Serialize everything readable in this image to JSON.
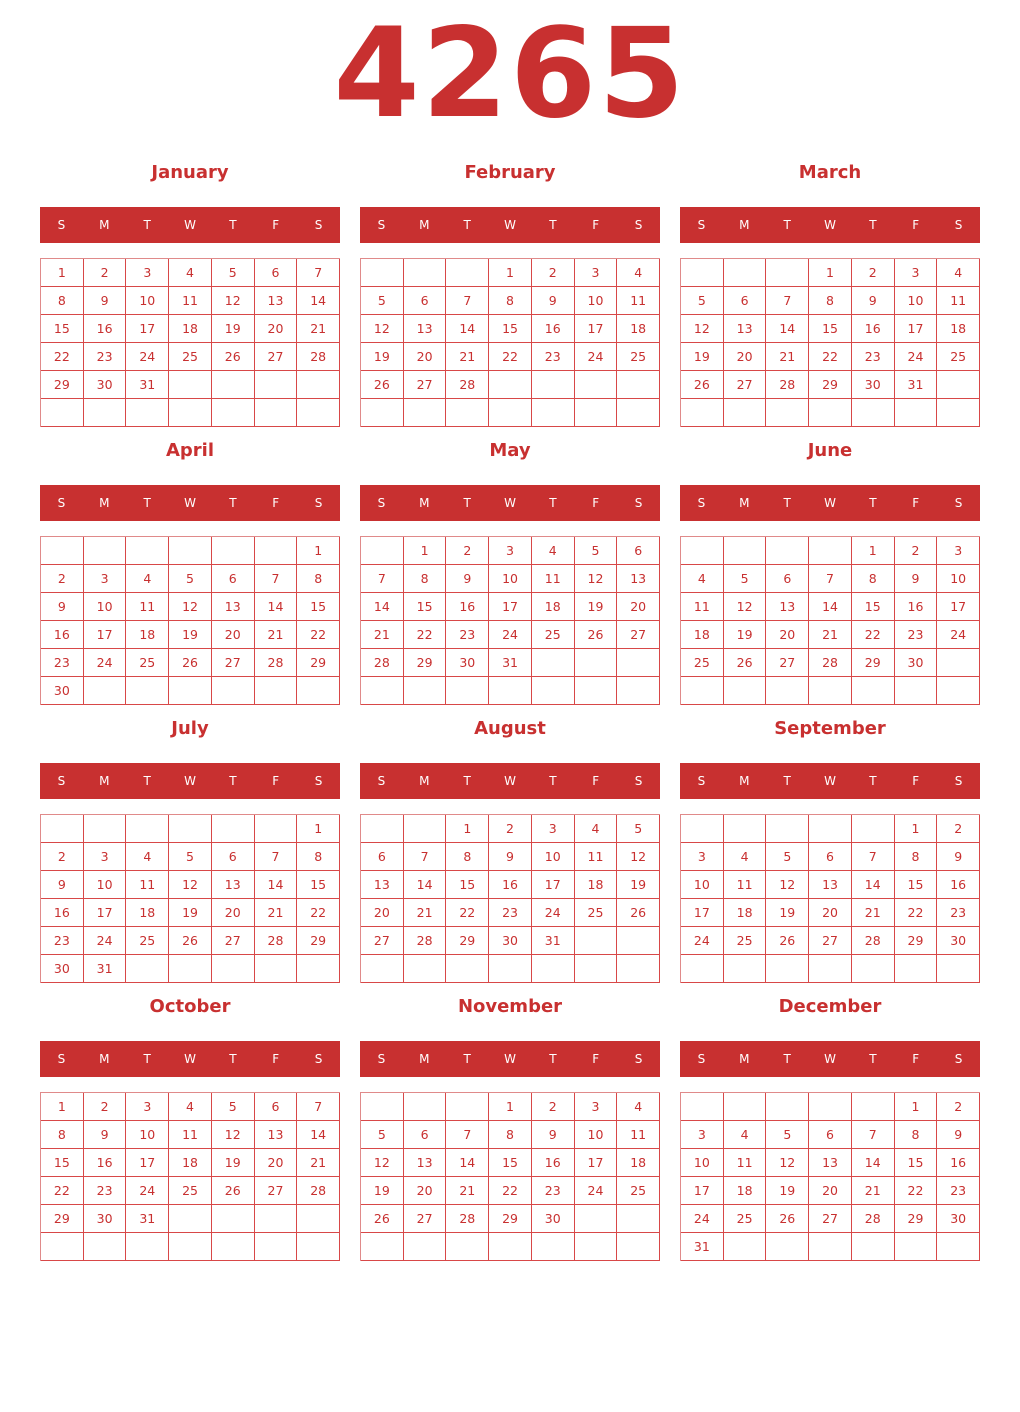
{
  "year": "4265",
  "colors": {
    "accent": "#c83030",
    "header_text": "#ffffff"
  },
  "weekday_labels": [
    "S",
    "M",
    "T",
    "W",
    "T",
    "F",
    "S"
  ],
  "months": [
    {
      "name": "January",
      "weeks": [
        [
          1,
          2,
          3,
          4,
          5,
          6,
          7
        ],
        [
          8,
          9,
          10,
          11,
          12,
          13,
          14
        ],
        [
          15,
          16,
          17,
          18,
          19,
          20,
          21
        ],
        [
          22,
          23,
          24,
          25,
          26,
          27,
          28
        ],
        [
          29,
          30,
          31,
          "",
          "",
          "",
          ""
        ],
        [
          "",
          "",
          "",
          "",
          "",
          "",
          ""
        ]
      ]
    },
    {
      "name": "February",
      "weeks": [
        [
          "",
          "",
          "",
          1,
          2,
          3,
          4
        ],
        [
          5,
          6,
          7,
          8,
          9,
          10,
          11
        ],
        [
          12,
          13,
          14,
          15,
          16,
          17,
          18
        ],
        [
          19,
          20,
          21,
          22,
          23,
          24,
          25
        ],
        [
          26,
          27,
          28,
          "",
          "",
          "",
          ""
        ],
        [
          "",
          "",
          "",
          "",
          "",
          "",
          ""
        ]
      ]
    },
    {
      "name": "March",
      "weeks": [
        [
          "",
          "",
          "",
          1,
          2,
          3,
          4
        ],
        [
          5,
          6,
          7,
          8,
          9,
          10,
          11
        ],
        [
          12,
          13,
          14,
          15,
          16,
          17,
          18
        ],
        [
          19,
          20,
          21,
          22,
          23,
          24,
          25
        ],
        [
          26,
          27,
          28,
          29,
          30,
          31,
          ""
        ],
        [
          "",
          "",
          "",
          "",
          "",
          "",
          ""
        ]
      ]
    },
    {
      "name": "April",
      "weeks": [
        [
          "",
          "",
          "",
          "",
          "",
          "",
          1
        ],
        [
          2,
          3,
          4,
          5,
          6,
          7,
          8
        ],
        [
          9,
          10,
          11,
          12,
          13,
          14,
          15
        ],
        [
          16,
          17,
          18,
          19,
          20,
          21,
          22
        ],
        [
          23,
          24,
          25,
          26,
          27,
          28,
          29
        ],
        [
          30,
          "",
          "",
          "",
          "",
          "",
          ""
        ]
      ]
    },
    {
      "name": "May",
      "weeks": [
        [
          "",
          1,
          2,
          3,
          4,
          5,
          6
        ],
        [
          7,
          8,
          9,
          10,
          11,
          12,
          13
        ],
        [
          14,
          15,
          16,
          17,
          18,
          19,
          20
        ],
        [
          21,
          22,
          23,
          24,
          25,
          26,
          27
        ],
        [
          28,
          29,
          30,
          31,
          "",
          "",
          ""
        ],
        [
          "",
          "",
          "",
          "",
          "",
          "",
          ""
        ]
      ]
    },
    {
      "name": "June",
      "weeks": [
        [
          "",
          "",
          "",
          "",
          1,
          2,
          3
        ],
        [
          4,
          5,
          6,
          7,
          8,
          9,
          10
        ],
        [
          11,
          12,
          13,
          14,
          15,
          16,
          17
        ],
        [
          18,
          19,
          20,
          21,
          22,
          23,
          24
        ],
        [
          25,
          26,
          27,
          28,
          29,
          30,
          ""
        ],
        [
          "",
          "",
          "",
          "",
          "",
          "",
          ""
        ]
      ]
    },
    {
      "name": "July",
      "weeks": [
        [
          "",
          "",
          "",
          "",
          "",
          "",
          1
        ],
        [
          2,
          3,
          4,
          5,
          6,
          7,
          8
        ],
        [
          9,
          10,
          11,
          12,
          13,
          14,
          15
        ],
        [
          16,
          17,
          18,
          19,
          20,
          21,
          22
        ],
        [
          23,
          24,
          25,
          26,
          27,
          28,
          29
        ],
        [
          30,
          31,
          "",
          "",
          "",
          "",
          ""
        ]
      ]
    },
    {
      "name": "August",
      "weeks": [
        [
          "",
          "",
          1,
          2,
          3,
          4,
          5
        ],
        [
          6,
          7,
          8,
          9,
          10,
          11,
          12
        ],
        [
          13,
          14,
          15,
          16,
          17,
          18,
          19
        ],
        [
          20,
          21,
          22,
          23,
          24,
          25,
          26
        ],
        [
          27,
          28,
          29,
          30,
          31,
          "",
          ""
        ],
        [
          "",
          "",
          "",
          "",
          "",
          "",
          ""
        ]
      ]
    },
    {
      "name": "September",
      "weeks": [
        [
          "",
          "",
          "",
          "",
          "",
          1,
          2
        ],
        [
          3,
          4,
          5,
          6,
          7,
          8,
          9
        ],
        [
          10,
          11,
          12,
          13,
          14,
          15,
          16
        ],
        [
          17,
          18,
          19,
          20,
          21,
          22,
          23
        ],
        [
          24,
          25,
          26,
          27,
          28,
          29,
          30
        ],
        [
          "",
          "",
          "",
          "",
          "",
          "",
          ""
        ]
      ]
    },
    {
      "name": "October",
      "weeks": [
        [
          1,
          2,
          3,
          4,
          5,
          6,
          7
        ],
        [
          8,
          9,
          10,
          11,
          12,
          13,
          14
        ],
        [
          15,
          16,
          17,
          18,
          19,
          20,
          21
        ],
        [
          22,
          23,
          24,
          25,
          26,
          27,
          28
        ],
        [
          29,
          30,
          31,
          "",
          "",
          "",
          ""
        ],
        [
          "",
          "",
          "",
          "",
          "",
          "",
          ""
        ]
      ]
    },
    {
      "name": "November",
      "weeks": [
        [
          "",
          "",
          "",
          1,
          2,
          3,
          4
        ],
        [
          5,
          6,
          7,
          8,
          9,
          10,
          11
        ],
        [
          12,
          13,
          14,
          15,
          16,
          17,
          18
        ],
        [
          19,
          20,
          21,
          22,
          23,
          24,
          25
        ],
        [
          26,
          27,
          28,
          29,
          30,
          "",
          ""
        ],
        [
          "",
          "",
          "",
          "",
          "",
          "",
          ""
        ]
      ]
    },
    {
      "name": "December",
      "weeks": [
        [
          "",
          "",
          "",
          "",
          "",
          1,
          2
        ],
        [
          3,
          4,
          5,
          6,
          7,
          8,
          9
        ],
        [
          10,
          11,
          12,
          13,
          14,
          15,
          16
        ],
        [
          17,
          18,
          19,
          20,
          21,
          22,
          23
        ],
        [
          24,
          25,
          26,
          27,
          28,
          29,
          30
        ],
        [
          31,
          "",
          "",
          "",
          "",
          "",
          ""
        ]
      ]
    }
  ]
}
